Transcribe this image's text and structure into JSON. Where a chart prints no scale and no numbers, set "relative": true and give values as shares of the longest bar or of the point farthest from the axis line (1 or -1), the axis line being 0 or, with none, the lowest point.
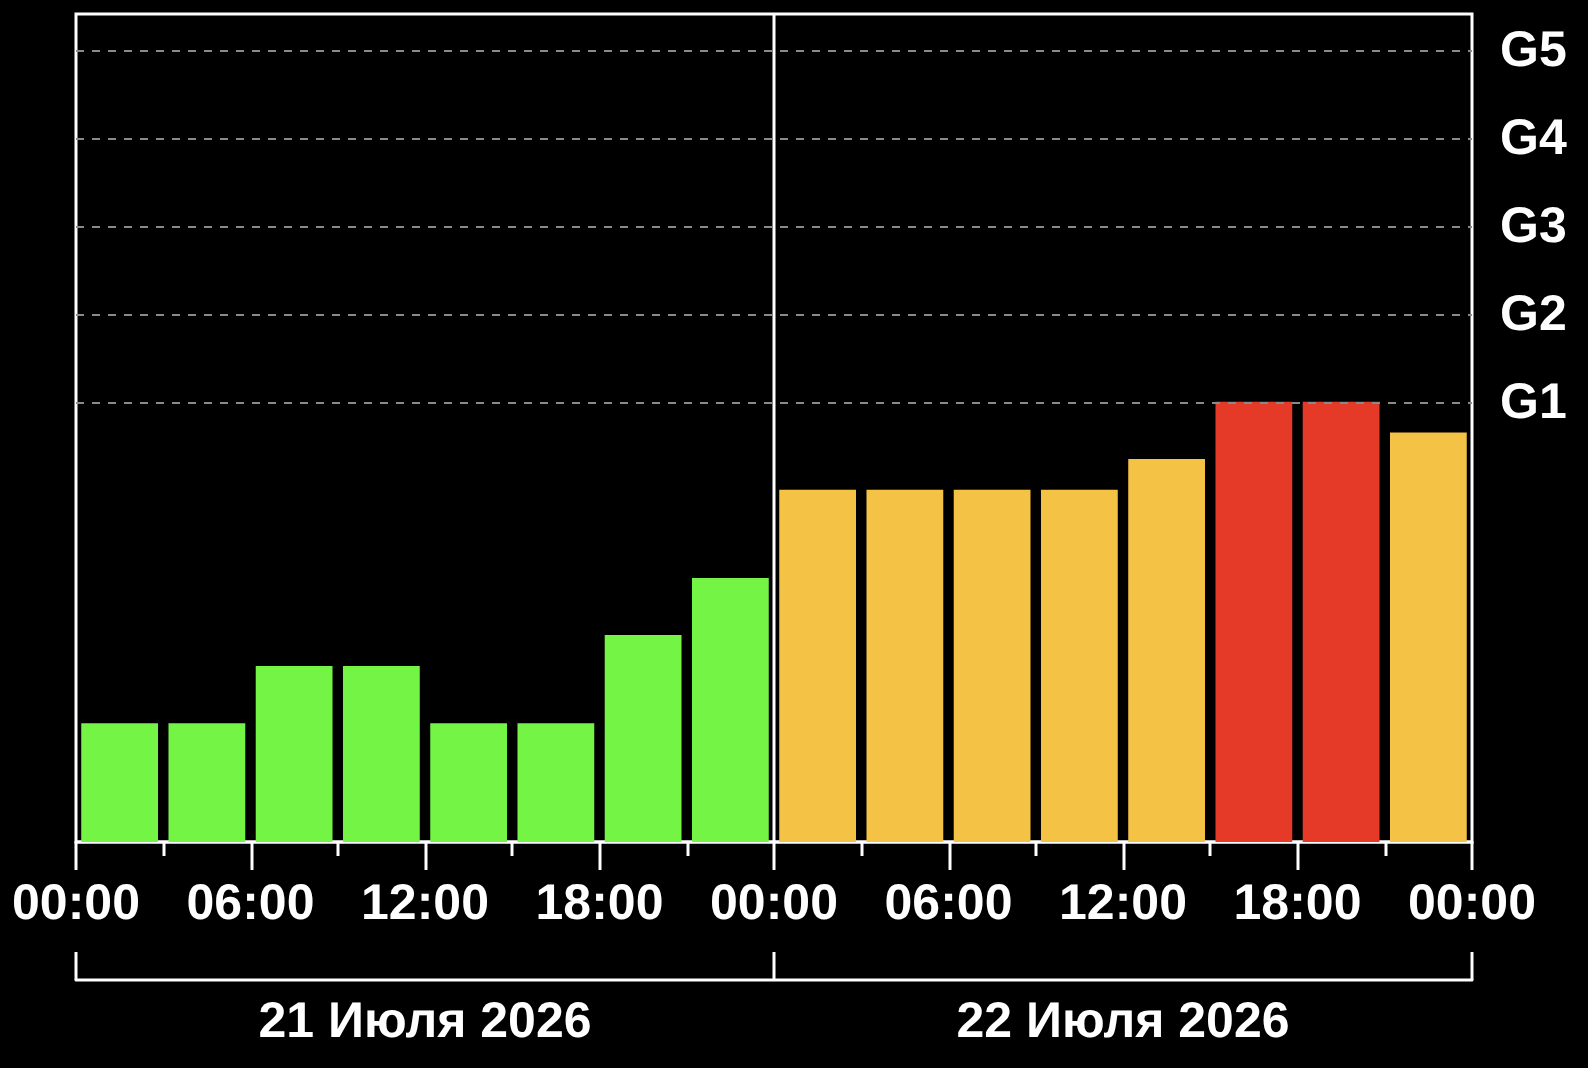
{
  "chart_data": {
    "type": "bar",
    "relative": true,
    "x": [
      "2026-07-21T01:30",
      "2026-07-21T04:30",
      "2026-07-21T07:30",
      "2026-07-21T10:30",
      "2026-07-21T13:30",
      "2026-07-21T16:30",
      "2026-07-21T19:30",
      "2026-07-21T22:30",
      "2026-07-22T01:30",
      "2026-07-22T04:30",
      "2026-07-22T07:30",
      "2026-07-22T10:30",
      "2026-07-22T13:30",
      "2026-07-22T16:30",
      "2026-07-22T19:30",
      "2026-07-22T22:30"
    ],
    "values": [
      0.27,
      0.27,
      0.4,
      0.4,
      0.27,
      0.27,
      0.47,
      0.6,
      0.8,
      0.8,
      0.8,
      0.8,
      0.87,
      1,
      1,
      0.93
    ],
    "colors": [
      "#74f545",
      "#74f545",
      "#74f545",
      "#74f545",
      "#74f545",
      "#74f545",
      "#74f545",
      "#74f545",
      "#f4c244",
      "#f4c244",
      "#f4c244",
      "#f4c244",
      "#f4c244",
      "#e63a28",
      "#e63a28",
      "#f4c244"
    ],
    "xlim": [
      "2026-07-21T00:00",
      "2026-07-23T00:00"
    ],
    "xticks": [
      {
        "value": "2026-07-21T00:00",
        "label": "00:00"
      },
      {
        "value": "2026-07-21T03:00",
        "label": null
      },
      {
        "value": "2026-07-21T06:00",
        "label": "06:00"
      },
      {
        "value": "2026-07-21T09:00",
        "label": null
      },
      {
        "value": "2026-07-21T12:00",
        "label": "12:00"
      },
      {
        "value": "2026-07-21T15:00",
        "label": null
      },
      {
        "value": "2026-07-21T18:00",
        "label": "18:00"
      },
      {
        "value": "2026-07-21T21:00",
        "label": null
      },
      {
        "value": "2026-07-22T00:00",
        "label": "00:00"
      },
      {
        "value": "2026-07-22T03:00",
        "label": null
      },
      {
        "value": "2026-07-22T06:00",
        "label": "06:00"
      },
      {
        "value": "2026-07-22T09:00",
        "label": null
      },
      {
        "value": "2026-07-22T12:00",
        "label": "12:00"
      },
      {
        "value": "2026-07-22T15:00",
        "label": null
      },
      {
        "value": "2026-07-22T18:00",
        "label": "18:00"
      },
      {
        "value": "2026-07-22T21:00",
        "label": null
      },
      {
        "value": "2026-07-23T00:00",
        "label": "00:00"
      }
    ],
    "x2lim": [
      "2026-07-21T00:00",
      "2026-07-23T00:00"
    ],
    "x2ticks": [
      {
        "value": "2026-07-21T00:00",
        "label": null
      },
      {
        "value": "2026-07-21T12:00",
        "label": "21 Июля 2026"
      },
      {
        "value": "2026-07-22T00:00",
        "label": null
      },
      {
        "value": "2026-07-22T12:00",
        "label": "22 Июля 2026"
      },
      {
        "value": "2026-07-23T00:00",
        "label": null
      }
    ],
    "ref_lines": [
      {
        "axis": "x",
        "value": "2026-07-22T00:00",
        "color": "#ffffff"
      },
      {
        "axis": "y",
        "value": 1,
        "label": "G1",
        "color": "#8a8a8a",
        "line_style": "dashed"
      },
      {
        "axis": "y",
        "value": 1.2,
        "label": "G2",
        "color": "#8a8a8a",
        "line_style": "dashed"
      },
      {
        "axis": "y",
        "value": 1.4,
        "label": "G3",
        "color": "#8a8a8a",
        "line_style": "dashed"
      },
      {
        "axis": "y",
        "value": 1.6,
        "label": "G4",
        "color": "#8a8a8a",
        "line_style": "dashed"
      },
      {
        "axis": "y",
        "value": 1.8,
        "label": "G5",
        "color": "#8a8a8a",
        "line_style": "dashed"
      }
    ]
  }
}
